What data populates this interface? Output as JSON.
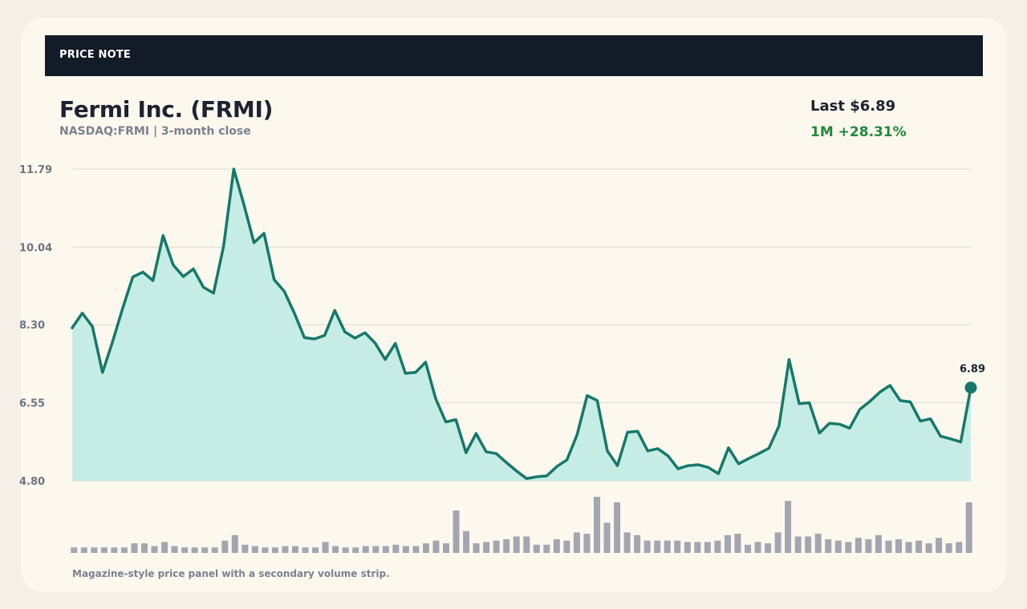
{
  "header": {
    "label": "PRICE NOTE"
  },
  "title": "Fermi Inc. (FRMI)",
  "subtitle": "NASDAQ:FRMI | 3-month close",
  "stats": {
    "last_label": "Last $6.89",
    "change_label": "1M +28.31%"
  },
  "caption": "Magazine-style price panel with a secondary volume strip.",
  "colors": {
    "line": "#16786a",
    "area": "#c6ede5",
    "volume": "#a3a6b0",
    "grid": "#dcdad2",
    "header_bg": "#131a28",
    "positive": "#1e8a3c"
  },
  "chart_data": {
    "type": "line",
    "title": "Fermi Inc. (FRMI)",
    "subtitle": "NASDAQ:FRMI | 3-month close",
    "xlabel": "",
    "ylabel": "",
    "ylim": [
      4.8,
      11.79
    ],
    "yticks": [
      "11.79",
      "10.04",
      "8.30",
      "6.55",
      "4.80"
    ],
    "grid": true,
    "last_value_label": "6.89",
    "series": [
      {
        "values": [
          8.23,
          8.56,
          8.26,
          7.23,
          7.92,
          8.67,
          9.37,
          9.48,
          9.29,
          10.3,
          9.64,
          9.38,
          9.55,
          9.14,
          9.01,
          10.07,
          11.79,
          11.0,
          10.14,
          10.35,
          9.31,
          9.05,
          8.56,
          8.01,
          7.98,
          8.06,
          8.62,
          8.14,
          8.0,
          8.12,
          7.89,
          7.52,
          7.88,
          7.21,
          7.23,
          7.46,
          6.64,
          6.12,
          6.17,
          5.43,
          5.86,
          5.45,
          5.41,
          5.21,
          5.02,
          4.85,
          4.89,
          4.91,
          5.12,
          5.27,
          5.83,
          6.71,
          6.6,
          5.47,
          5.14,
          5.89,
          5.91,
          5.47,
          5.52,
          5.36,
          5.07,
          5.14,
          5.16,
          5.1,
          4.96,
          5.54,
          5.18,
          5.3,
          5.41,
          5.53,
          6.03,
          7.52,
          6.53,
          6.55,
          5.87,
          6.09,
          6.07,
          5.98,
          6.4,
          6.58,
          6.79,
          6.94,
          6.6,
          6.57,
          6.14,
          6.19,
          5.8,
          5.74,
          5.67,
          6.89
        ]
      }
    ],
    "volume": [
      4,
      4,
      4,
      4,
      4,
      4,
      7,
      7,
      5,
      8,
      5,
      4,
      4,
      4,
      4,
      9,
      13,
      6,
      5,
      4,
      4,
      5,
      5,
      4,
      4,
      8,
      5,
      4,
      4,
      5,
      5,
      5,
      6,
      5,
      5,
      7,
      9,
      7,
      31,
      16,
      7,
      8,
      9,
      10,
      12,
      12,
      6,
      6,
      10,
      9,
      15,
      14,
      41,
      22,
      37,
      15,
      13,
      9,
      9,
      9,
      9,
      8,
      8,
      8,
      9,
      13,
      14,
      6,
      8,
      7,
      15,
      38,
      12,
      12,
      14,
      10,
      9,
      8,
      11,
      10,
      13,
      9,
      10,
      8,
      9,
      7,
      11,
      7,
      8,
      37
    ]
  }
}
